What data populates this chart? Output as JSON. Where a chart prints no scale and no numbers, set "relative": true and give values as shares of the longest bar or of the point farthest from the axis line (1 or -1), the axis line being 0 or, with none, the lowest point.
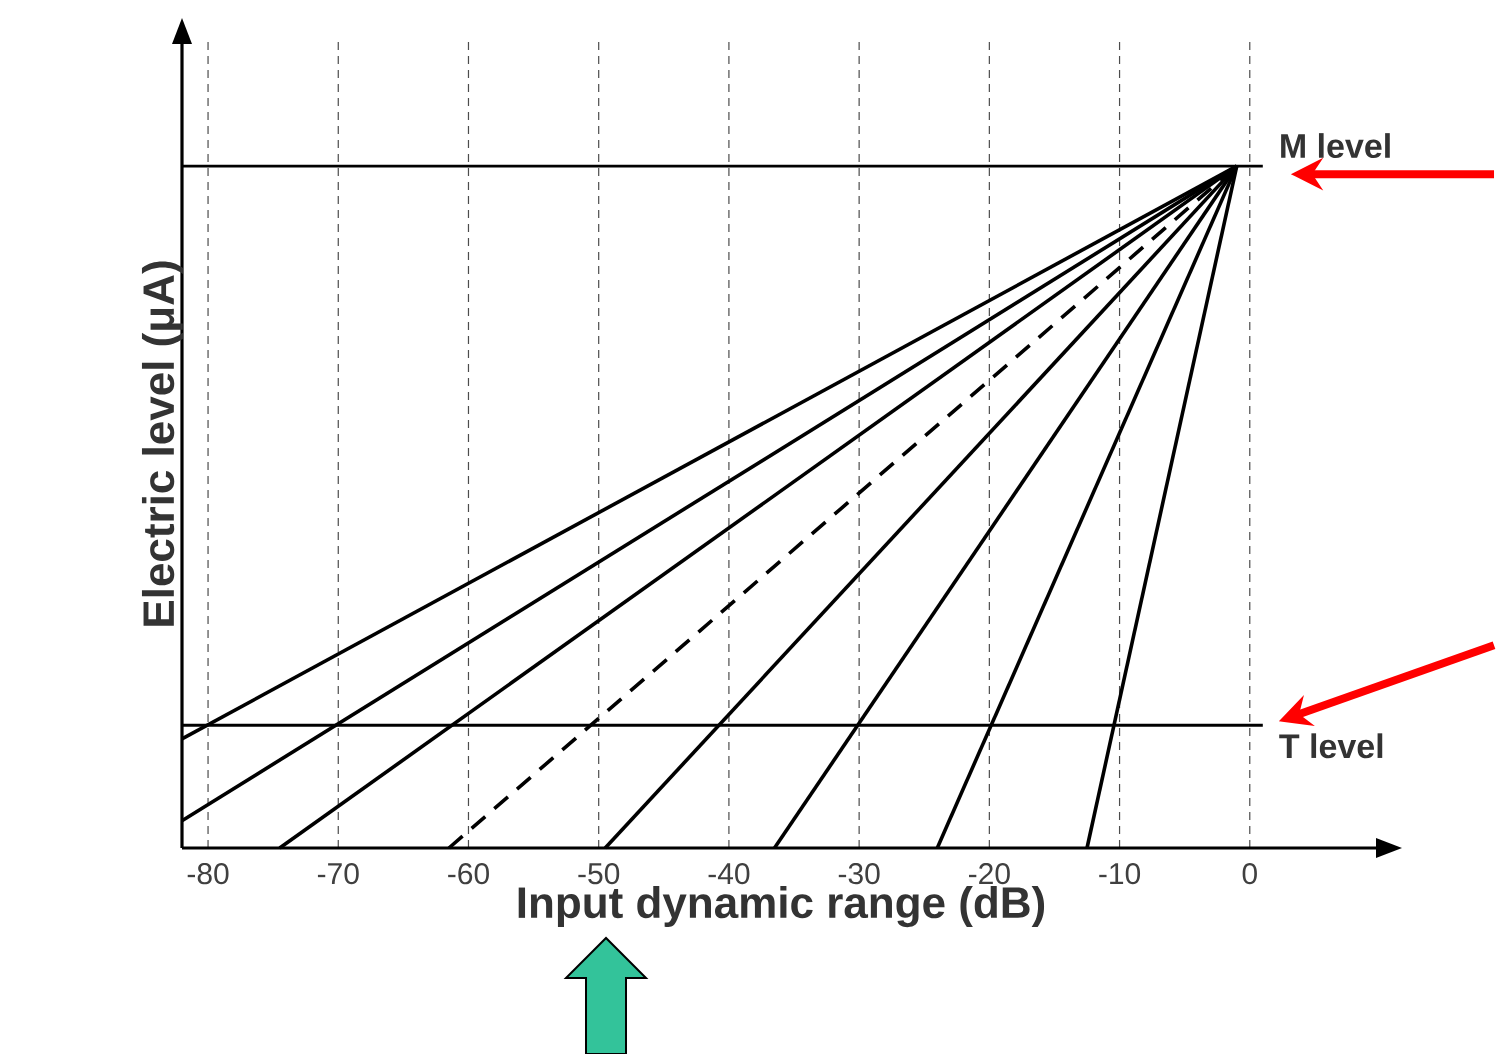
{
  "chart_data": {
    "type": "line",
    "xlabel": "Input dynamic range (dB)",
    "ylabel": "Electric level (μA)",
    "relative": true,
    "xlim": [
      -82,
      10
    ],
    "xticks": [
      -80,
      -70,
      -60,
      -50,
      -40,
      -30,
      -20,
      -10,
      0
    ],
    "grid": "x",
    "marker": "none",
    "series": [
      {
        "x": [
          -82,
          -1
        ],
        "values": [
          0.16,
          1
        ],
        "color": "#000000",
        "line_style": "solid"
      },
      {
        "x": [
          -82,
          -1
        ],
        "values": [
          0.04,
          1
        ],
        "color": "#000000",
        "line_style": "solid"
      },
      {
        "x": [
          -74.5,
          -1
        ],
        "values": [
          0,
          1
        ],
        "color": "#000000",
        "line_style": "solid"
      },
      {
        "x": [
          -61.5,
          -1
        ],
        "values": [
          0,
          1
        ],
        "color": "#000000",
        "line_style": "dashed"
      },
      {
        "x": [
          -49.5,
          -1
        ],
        "values": [
          0,
          1
        ],
        "color": "#000000",
        "line_style": "solid"
      },
      {
        "x": [
          -36.5,
          -1
        ],
        "values": [
          0,
          1
        ],
        "color": "#000000",
        "line_style": "solid"
      },
      {
        "x": [
          -24,
          -1
        ],
        "values": [
          0,
          1
        ],
        "color": "#000000",
        "line_style": "solid"
      },
      {
        "x": [
          -12.5,
          -1
        ],
        "values": [
          0,
          1
        ],
        "color": "#000000",
        "line_style": "solid"
      }
    ],
    "ref_lines": [
      {
        "axis": "y",
        "value": 1,
        "label": "M level"
      },
      {
        "axis": "y",
        "value": 0.18,
        "label": "T level"
      }
    ]
  }
}
